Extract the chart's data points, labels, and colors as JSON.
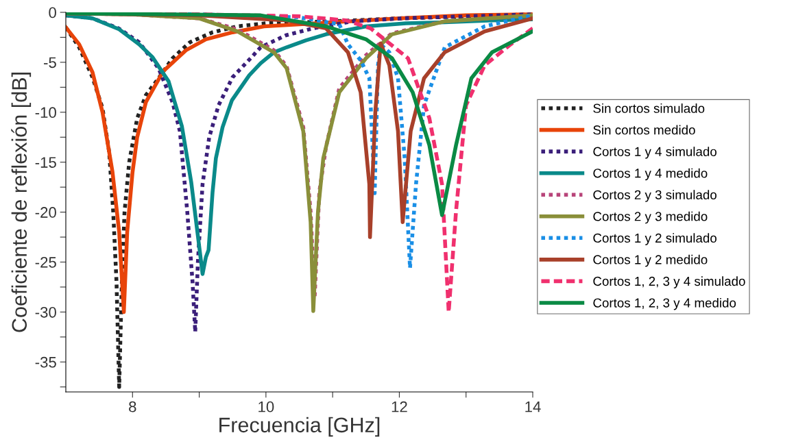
{
  "chart_data": {
    "type": "line",
    "xlabel": "Frecuencia [GHz]",
    "ylabel": "Coeficiente de reflexión [dB]",
    "xlim": [
      7,
      14
    ],
    "ylim": [
      -38,
      0
    ],
    "xticks": [
      8,
      {
        "value": 9,
        "label": null
      },
      10,
      {
        "value": 11,
        "label": null
      },
      12,
      {
        "value": 13,
        "label": null
      },
      14
    ],
    "yticks": [
      0,
      {
        "value": -2.5,
        "label": null
      },
      -5,
      {
        "value": -7.5,
        "label": null
      },
      -10,
      {
        "value": -12.5,
        "label": null
      },
      -15,
      {
        "value": -17.5,
        "label": null
      },
      -20,
      {
        "value": -22.5,
        "label": null
      },
      -25,
      {
        "value": -27.5,
        "label": null
      },
      -30,
      {
        "value": -32.5,
        "label": null
      },
      -35,
      {
        "value": -37.5,
        "label": null
      }
    ],
    "grid": false,
    "legend": "right",
    "marker": "none",
    "series": [
      {
        "name": "Sin cortos simulado",
        "color": "#222222",
        "line_style": "dotted",
        "x": [
          7,
          7.2,
          7.4,
          7.55,
          7.65,
          7.71,
          7.76,
          7.8,
          7.84,
          7.88,
          7.95,
          8.07,
          8.2,
          8.39,
          8.6,
          8.86,
          9.2,
          9.57,
          10,
          11,
          12,
          13,
          14
        ],
        "values": [
          -1.5,
          -3.5,
          -6.5,
          -9.6,
          -14,
          -19.9,
          -27,
          -37.5,
          -27,
          -20,
          -15,
          -10.6,
          -8.3,
          -6.6,
          -4.6,
          -3,
          -2,
          -1.4,
          -1.1,
          -0.9,
          -0.6,
          -0.4,
          -0.2
        ]
      },
      {
        "name": "Sin cortos medido",
        "color": "#e8440a",
        "line_style": "solid",
        "x": [
          7,
          7.2,
          7.4,
          7.55,
          7.7,
          7.8,
          7.87,
          7.92,
          8,
          8.07,
          8.2,
          8.46,
          8.8,
          9.1,
          9.5,
          9.97,
          10.5,
          11,
          12,
          13,
          14
        ],
        "values": [
          -1.5,
          -3.2,
          -6,
          -10,
          -16,
          -22,
          -30,
          -22,
          -16,
          -12.5,
          -9,
          -5.9,
          -3.8,
          -2.7,
          -2,
          -1.4,
          -1.2,
          -1,
          -0.6,
          -0.3,
          -0.2
        ]
      },
      {
        "name": "Cortos 1 y 4 simulado",
        "color": "#3b1f7a",
        "line_style": "dotted",
        "x": [
          7,
          7.4,
          7.79,
          8.1,
          8.39,
          8.6,
          8.71,
          8.82,
          8.9,
          8.94,
          8.98,
          9.05,
          9.15,
          9.29,
          9.5,
          9.77,
          9.92,
          10.3,
          10.71,
          11.3,
          12.05,
          13,
          14
        ],
        "values": [
          -0.3,
          -0.6,
          -1.6,
          -3,
          -5.6,
          -9,
          -11.9,
          -19.9,
          -27,
          -32,
          -25,
          -17.2,
          -12.5,
          -9.3,
          -6.5,
          -4.6,
          -3.5,
          -2.3,
          -1.6,
          -0.9,
          -0.6,
          -0.4,
          -0.2
        ]
      },
      {
        "name": "Cortos 1 y 4 medido",
        "color": "#0a8a8a",
        "line_style": "solid",
        "x": [
          7,
          7.4,
          7.8,
          8.1,
          8.3,
          8.54,
          8.74,
          8.88,
          9.01,
          9.05,
          9.1,
          9.14,
          9.2,
          9.25,
          9.35,
          9.49,
          9.75,
          9.92,
          10.12,
          10.31,
          10.6,
          10.9,
          11.5,
          12.1,
          12.68,
          13.4,
          14
        ],
        "values": [
          -0.3,
          -0.6,
          -1.7,
          -3.2,
          -4.5,
          -6.9,
          -11.4,
          -17,
          -24,
          -26.2,
          -24.5,
          -23.8,
          -18,
          -14.6,
          -11.5,
          -8.8,
          -6.3,
          -5.1,
          -4,
          -3.5,
          -2.8,
          -2.2,
          -1.4,
          -1.1,
          -1,
          -0.8,
          -0.7
        ]
      },
      {
        "name": "Cortos 2 y 3 simulado",
        "color": "#b8457a",
        "line_style": "dotted",
        "x": [
          7,
          8,
          9,
          9.57,
          10.12,
          10.31,
          10.56,
          10.67,
          10.73,
          10.8,
          10.9,
          11.1,
          11.5,
          11.89,
          12.68,
          14
        ],
        "values": [
          -0.1,
          -0.2,
          -0.6,
          -1.7,
          -3.8,
          -5.4,
          -11.5,
          -20,
          -28.6,
          -18,
          -13.5,
          -7.6,
          -4.3,
          -2.1,
          -0.9,
          -0.3
        ]
      },
      {
        "name": "Cortos 2 y 3 medido",
        "color": "#8a8f3a",
        "line_style": "solid",
        "x": [
          7,
          8,
          9,
          9.57,
          10.12,
          10.31,
          10.56,
          10.67,
          10.71,
          10.78,
          10.86,
          11.1,
          11.5,
          11.89,
          12.68,
          14
        ],
        "values": [
          -0.1,
          -0.2,
          -0.6,
          -1.9,
          -4,
          -5.6,
          -11.9,
          -21,
          -29.9,
          -20,
          -14.6,
          -8,
          -4.6,
          -2.2,
          -0.9,
          -0.3
        ]
      },
      {
        "name": "Cortos 1 y 2 simulado",
        "color": "#1a8fe6",
        "line_style": "dotted",
        "x": [
          7,
          9,
          10.5,
          11.1,
          11.23,
          11.42,
          11.55,
          11.58,
          11.63,
          11.68,
          11.72,
          11.85,
          11.98,
          12.08,
          12.16,
          12.25,
          12.37,
          12.68,
          13.28,
          14
        ],
        "values": [
          -0.1,
          -0.2,
          -0.5,
          -1.2,
          -3.2,
          -4.8,
          -6.6,
          -10.6,
          -18.1,
          -5.3,
          -3.2,
          -4,
          -6.6,
          -14.6,
          -25.6,
          -17.2,
          -9.3,
          -3.5,
          -1.4,
          -0.3
        ]
      },
      {
        "name": "Cortos 1 y 2 medido",
        "color": "#a8402a",
        "line_style": "solid",
        "x": [
          7,
          9,
          10.3,
          10.9,
          11.23,
          11.42,
          11.55,
          11.56,
          11.64,
          11.72,
          11.85,
          11.98,
          12.05,
          12.17,
          12.37,
          12.68,
          13.28,
          14
        ],
        "values": [
          -0.1,
          -0.3,
          -0.8,
          -1.6,
          -4,
          -8,
          -17.2,
          -22.5,
          -10,
          -3.1,
          -5.3,
          -11.9,
          -21,
          -11.9,
          -6.6,
          -4,
          -1.9,
          -0.6
        ]
      },
      {
        "name": "Cortos 1, 2, 3 y 4 simulado",
        "color": "#f0306e",
        "line_style": "dashed",
        "x": [
          7,
          9,
          10.5,
          11.2,
          11.57,
          12.13,
          12.45,
          12.64,
          12.74,
          12.85,
          13,
          13.28,
          13.67,
          14
        ],
        "values": [
          -0.1,
          -0.2,
          -0.4,
          -0.8,
          -1.6,
          -4.6,
          -10.6,
          -17.2,
          -30,
          -19.9,
          -9.3,
          -5.3,
          -3.2,
          -1.6
        ]
      },
      {
        "name": "Cortos 1, 2, 3 y 4 medido",
        "color": "#0a8a44",
        "line_style": "solid",
        "x": [
          7,
          8.5,
          9.92,
          10.9,
          11.5,
          11.89,
          12.2,
          12.45,
          12.64,
          12.85,
          13.08,
          13.39,
          14
        ],
        "values": [
          -0.1,
          -0.2,
          -0.3,
          -1.4,
          -2.7,
          -4.6,
          -8,
          -13.3,
          -20.3,
          -13.3,
          -6.6,
          -4,
          -1.9
        ]
      }
    ]
  }
}
